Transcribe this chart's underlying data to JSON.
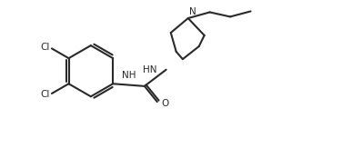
{
  "bg_color": "#ffffff",
  "line_color": "#2a2a2a",
  "line_width": 1.5,
  "font_size": 7.5,
  "figsize": [
    3.98,
    1.63
  ],
  "dpi": 100,
  "xlim": [
    -0.5,
    11.5
  ],
  "ylim": [
    -0.3,
    4.5
  ]
}
